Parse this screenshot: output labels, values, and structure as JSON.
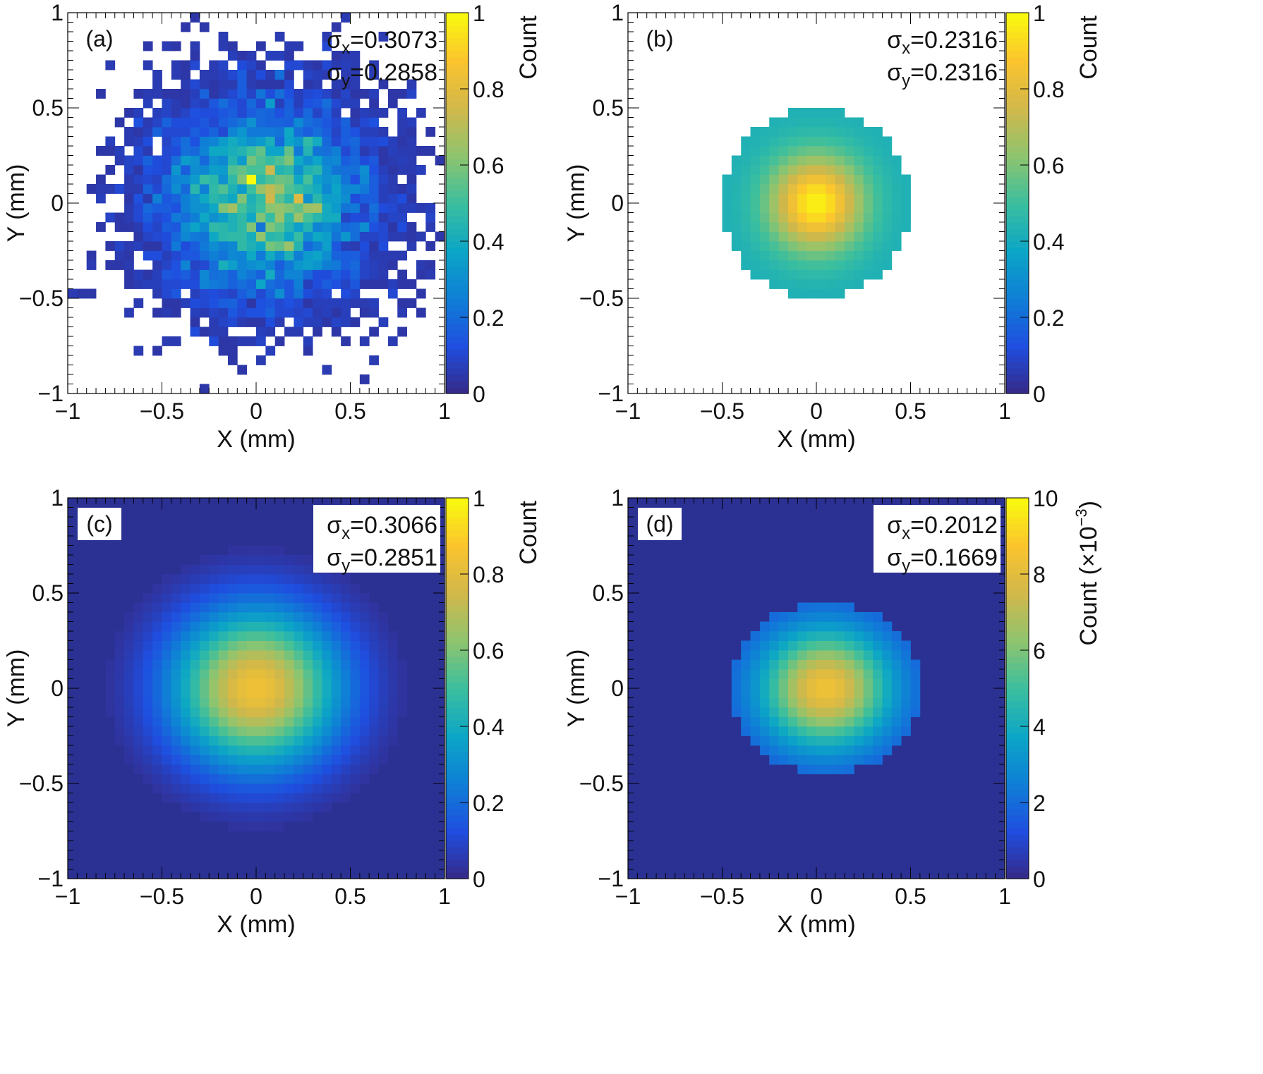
{
  "chart_data": [
    {
      "type": "heatmap",
      "panel_label": "(a)",
      "distribution": "noisy",
      "x_center": 0.05,
      "y_center": 0.02,
      "sigma_x": 0.3073,
      "sigma_y": 0.2858,
      "x_range": [
        -1,
        1
      ],
      "y_range": [
        -1,
        1
      ],
      "xlabel": "X (mm)",
      "ylabel": "Y (mm)",
      "x_ticks": [
        "−1",
        "−0.5",
        "0",
        "0.5",
        "1"
      ],
      "y_ticks": [
        "−1",
        "−0.5",
        "0",
        "0.5",
        "1"
      ],
      "stats": [
        {
          "symbol": "σ",
          "sub": "x",
          "value": "=0.3073"
        },
        {
          "symbol": "σ",
          "sub": "y",
          "value": "=0.2858"
        }
      ],
      "colorbar": {
        "label": "Count",
        "exponent": "",
        "ticks": [
          "0",
          "0.2",
          "0.4",
          "0.6",
          "0.8",
          "1"
        ],
        "range": [
          0,
          1
        ]
      }
    },
    {
      "type": "heatmap",
      "panel_label": "(b)",
      "distribution": "disk",
      "x_center": 0.0,
      "y_center": 0.0,
      "radius": 0.5,
      "sigma_x": 0.2316,
      "sigma_y": 0.2316,
      "x_range": [
        -1,
        1
      ],
      "y_range": [
        -1,
        1
      ],
      "xlabel": "X (mm)",
      "ylabel": "Y (mm)",
      "x_ticks": [
        "−1",
        "−0.5",
        "0",
        "0.5",
        "1"
      ],
      "y_ticks": [
        "−1",
        "−0.5",
        "0",
        "0.5",
        "1"
      ],
      "stats": [
        {
          "symbol": "σ",
          "sub": "x",
          "value": "=0.2316"
        },
        {
          "symbol": "σ",
          "sub": "y",
          "value": "=0.2316"
        }
      ],
      "colorbar": {
        "label": "Count",
        "exponent": "",
        "ticks": [
          "0",
          "0.2",
          "0.4",
          "0.6",
          "0.8",
          "1"
        ],
        "range": [
          0,
          1
        ]
      }
    },
    {
      "type": "heatmap",
      "panel_label": "(c)",
      "distribution": "gaussian",
      "x_center": 0.0,
      "y_center": 0.0,
      "sigma_x": 0.3066,
      "sigma_y": 0.2851,
      "x_range": [
        -1,
        1
      ],
      "y_range": [
        -1,
        1
      ],
      "xlabel": "X (mm)",
      "ylabel": "Y (mm)",
      "x_ticks": [
        "−1",
        "−0.5",
        "0",
        "0.5",
        "1"
      ],
      "y_ticks": [
        "−1",
        "−0.5",
        "0",
        "0.5",
        "1"
      ],
      "stats": [
        {
          "symbol": "σ",
          "sub": "x",
          "value": "=0.3066"
        },
        {
          "symbol": "σ",
          "sub": "y",
          "value": "=0.2851"
        }
      ],
      "colorbar": {
        "label": "Count",
        "exponent": "",
        "ticks": [
          "0",
          "0.2",
          "0.4",
          "0.6",
          "0.8",
          "1"
        ],
        "range": [
          0,
          1
        ]
      }
    },
    {
      "type": "heatmap",
      "panel_label": "(d)",
      "distribution": "ellipse",
      "x_center": 0.05,
      "y_center": 0.0,
      "radius_x": 0.5,
      "radius_y": 0.45,
      "sigma_x": 0.2012,
      "sigma_y": 0.1669,
      "x_range": [
        -1,
        1
      ],
      "y_range": [
        -1,
        1
      ],
      "xlabel": "X (mm)",
      "ylabel": "Y (mm)",
      "x_ticks": [
        "−1",
        "−0.5",
        "0",
        "0.5",
        "1"
      ],
      "y_ticks": [
        "−1",
        "−0.5",
        "0",
        "0.5",
        "1"
      ],
      "stats": [
        {
          "symbol": "σ",
          "sub": "x",
          "value": "=0.2012"
        },
        {
          "symbol": "σ",
          "sub": "y",
          "value": "=0.1669"
        }
      ],
      "colorbar": {
        "label": "Count (×10",
        "exponent": "−3",
        "label_close": ")",
        "ticks": [
          "0",
          "2",
          "4",
          "6",
          "8",
          "10"
        ],
        "range": [
          0,
          10
        ]
      }
    }
  ],
  "colors": {
    "background_low": "#2b3192",
    "colormap": [
      "#352a87",
      "#1f4ee0",
      "#0f7fd6",
      "#0ca6c6",
      "#3bbf9e",
      "#8fc46e",
      "#d1b84a",
      "#fbc42d",
      "#f9fb0e"
    ]
  }
}
